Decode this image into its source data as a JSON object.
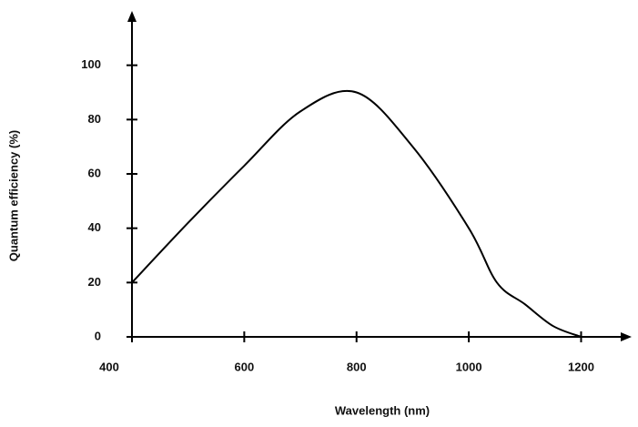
{
  "chart_data": {
    "type": "line",
    "xlabel": "Wavelength (nm)",
    "ylabel": "Quantum efficiency (%)",
    "x": [
      400,
      500,
      600,
      700,
      800,
      900,
      1000,
      1050,
      1100,
      1150,
      1200
    ],
    "values": [
      20,
      42,
      63,
      83,
      90,
      70,
      40,
      20,
      12,
      4,
      0
    ],
    "color": "#000000",
    "xlim": [
      400,
      1290
    ],
    "xticks": [
      400,
      600,
      800,
      1000,
      1200
    ],
    "ylim": [
      0,
      120
    ],
    "yticks": [
      0,
      20,
      40,
      60,
      80,
      100
    ]
  }
}
